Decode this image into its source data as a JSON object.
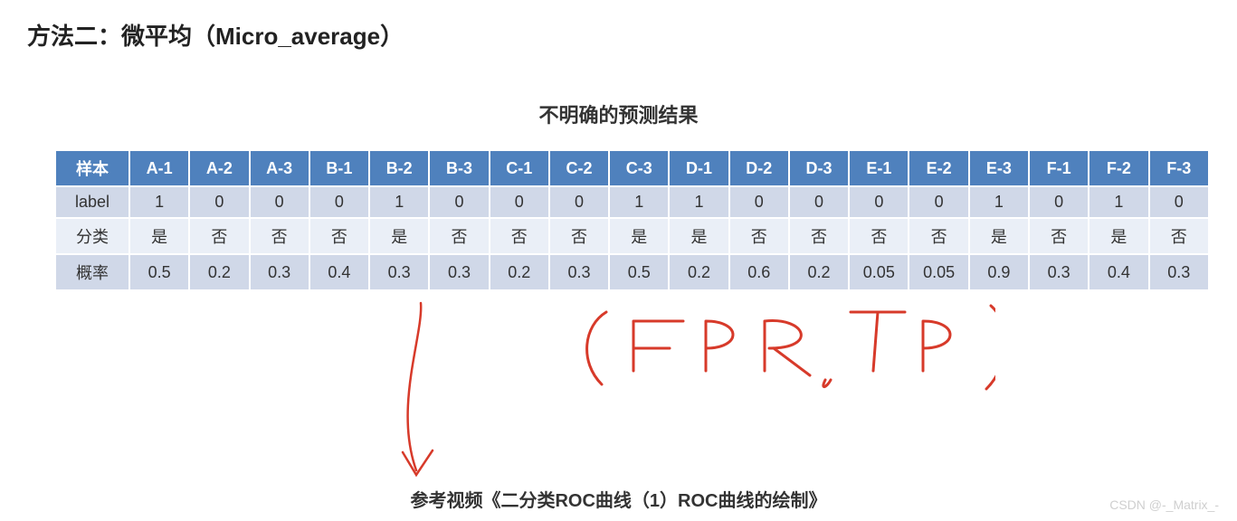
{
  "title": "方法二：微平均（Micro_average）",
  "table": {
    "caption": "不明确的预测结果",
    "header_first": "样本",
    "columns": [
      "A-1",
      "A-2",
      "A-3",
      "B-1",
      "B-2",
      "B-3",
      "C-1",
      "C-2",
      "C-3",
      "D-1",
      "D-2",
      "D-3",
      "E-1",
      "E-2",
      "E-3",
      "F-1",
      "F-2",
      "F-3"
    ],
    "rows": [
      {
        "label": "label",
        "cells": [
          "1",
          "0",
          "0",
          "0",
          "1",
          "0",
          "0",
          "0",
          "1",
          "1",
          "0",
          "0",
          "0",
          "0",
          "1",
          "0",
          "1",
          "0"
        ]
      },
      {
        "label": "分类",
        "cells": [
          "是",
          "否",
          "否",
          "否",
          "是",
          "否",
          "否",
          "否",
          "是",
          "是",
          "否",
          "否",
          "否",
          "否",
          "是",
          "否",
          "是",
          "否"
        ]
      },
      {
        "label": "概率",
        "cells": [
          "0.5",
          "0.2",
          "0.3",
          "0.4",
          "0.3",
          "0.3",
          "0.2",
          "0.3",
          "0.5",
          "0.2",
          "0.6",
          "0.2",
          "0.05",
          "0.05",
          "0.9",
          "0.3",
          "0.4",
          "0.3"
        ]
      }
    ],
    "header_bg": "#4f81bd",
    "header_fg": "#ffffff",
    "row_even_bg": "#d0d8e8",
    "row_odd_bg": "#eaeff7",
    "border_color": "#ffffff"
  },
  "annotation": {
    "text": "（FPR, TPR）",
    "color": "#d73a2a",
    "arrow_from_col": "B-3"
  },
  "footer": "参考视频《二分类ROC曲线（1）ROC曲线的绘制》",
  "watermark": "CSDN @-_Matrix_-"
}
